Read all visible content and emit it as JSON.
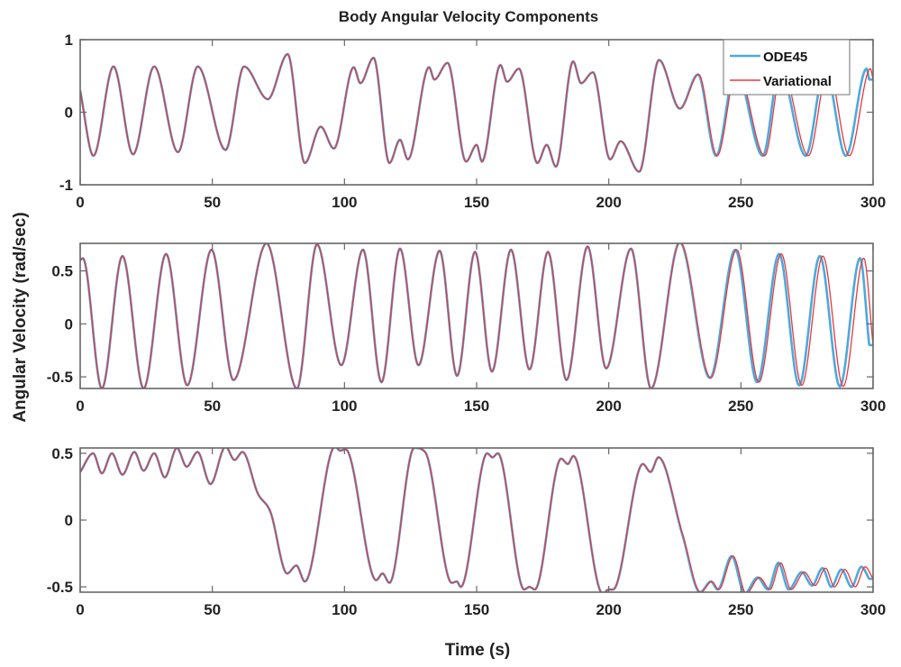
{
  "chart_data": {
    "type": "line",
    "title": "Body Angular Velocity Components",
    "xlabel": "Time (s)",
    "ylabel": "Angular Velocity (rad/sec)",
    "legend": {
      "placement": "top-right (top subplot)",
      "entries": [
        "ODE45",
        "Variational"
      ]
    },
    "colors": {
      "ODE45": "#4da9dc",
      "Variational": "#e8383d",
      "axis": "#666666"
    },
    "grid": false,
    "xlim": [
      0,
      300
    ],
    "xticks": [
      0,
      50,
      100,
      150,
      200,
      250,
      300
    ],
    "ode45_relation": {
      "description_note": "ODE45 matches Variational until ~220 s, then leads it slightly",
      "lead_start_s": 220,
      "lead_max_s": 1.5
    },
    "subplots": [
      {
        "name": "component-1",
        "ylim": [
          -1,
          1
        ],
        "yticks": [
          -1,
          0,
          1
        ],
        "variational": {
          "x": [
            0,
            5,
            12.6,
            20,
            28,
            37,
            44.5,
            55,
            62,
            71,
            78.5,
            85,
            91,
            96,
            103.5,
            106,
            111,
            117,
            121,
            124,
            132,
            134,
            139,
            146,
            150,
            152,
            159,
            161.5,
            166,
            173,
            176.5,
            180,
            186.5,
            189.5,
            194,
            200.5,
            204.5,
            211.5,
            219,
            227,
            234,
            241,
            248.5,
            259,
            265.5,
            275.5,
            283,
            291,
            299,
            300
          ],
          "y": [
            0.3,
            -0.6,
            0.63,
            -0.58,
            0.63,
            -0.55,
            0.63,
            -0.52,
            0.63,
            0.18,
            0.8,
            -0.7,
            -0.2,
            -0.5,
            0.62,
            0.4,
            0.75,
            -0.7,
            -0.38,
            -0.65,
            0.62,
            0.45,
            0.68,
            -0.68,
            -0.45,
            -0.68,
            0.65,
            0.42,
            0.6,
            -0.7,
            -0.45,
            -0.75,
            0.7,
            0.4,
            0.55,
            -0.65,
            -0.4,
            -0.82,
            0.72,
            0.05,
            0.52,
            -0.6,
            0.6,
            -0.6,
            0.6,
            -0.6,
            0.6,
            -0.6,
            0.6,
            0.45
          ]
        }
      },
      {
        "name": "component-2",
        "ylim": [
          -0.61,
          0.76
        ],
        "yticks": [
          -0.5,
          0,
          0.5
        ],
        "variational": {
          "x": [
            0,
            1,
            8.2,
            16,
            24,
            32.5,
            40.5,
            49.7,
            58,
            70.5,
            82,
            89.6,
            98.8,
            107,
            114,
            121,
            128,
            136,
            142.6,
            149.4,
            155.8,
            163,
            170,
            177,
            184,
            192,
            199,
            208.4,
            216,
            227,
            238.6,
            248.4,
            256.8,
            265.3,
            273,
            281,
            288.7,
            296.5,
            300
          ],
          "y": [
            0.6,
            0.62,
            -0.61,
            0.64,
            -0.61,
            0.66,
            -0.58,
            0.7,
            -0.53,
            0.76,
            -0.61,
            0.75,
            -0.39,
            0.7,
            -0.55,
            0.71,
            -0.39,
            0.69,
            -0.49,
            0.68,
            -0.45,
            0.7,
            -0.43,
            0.68,
            -0.53,
            0.73,
            -0.42,
            0.71,
            -0.61,
            0.77,
            -0.51,
            0.7,
            -0.55,
            0.66,
            -0.58,
            0.64,
            -0.59,
            0.62,
            -0.2
          ]
        }
      },
      {
        "name": "component-3",
        "ylim": [
          -0.54,
          0.54
        ],
        "yticks": [
          -0.5,
          0,
          0.5
        ],
        "variational": {
          "x": [
            0,
            4.9,
            8.2,
            12,
            16,
            20.5,
            24,
            28,
            32,
            36.6,
            40.3,
            44.4,
            49.3,
            55,
            58.4,
            61.4,
            67.2,
            72,
            78.3,
            81.8,
            85,
            96.4,
            98.4,
            100.4,
            112,
            114.4,
            117,
            126.4,
            130.5,
            140.6,
            142.5,
            144,
            154,
            156,
            158,
            168,
            170,
            172,
            182,
            184.5,
            186.6,
            197.7,
            200,
            201.6,
            212.9,
            215.8,
            218.8,
            228,
            234.8,
            239,
            241.6,
            247,
            252,
            257,
            261,
            265,
            269,
            274,
            278,
            282,
            285.4,
            289.3,
            293.2,
            297,
            300
          ],
          "y": [
            0.36,
            0.5,
            0.35,
            0.5,
            0.34,
            0.51,
            0.37,
            0.5,
            0.32,
            0.54,
            0.4,
            0.51,
            0.27,
            0.55,
            0.45,
            0.51,
            0.2,
            0.06,
            -0.4,
            -0.34,
            -0.46,
            0.55,
            0.52,
            0.53,
            -0.45,
            -0.4,
            -0.47,
            0.54,
            0.51,
            -0.47,
            -0.46,
            -0.5,
            0.5,
            0.47,
            0.5,
            -0.52,
            -0.5,
            -0.52,
            0.46,
            0.42,
            0.48,
            -0.55,
            -0.52,
            -0.52,
            0.42,
            0.36,
            0.47,
            -0.11,
            -0.54,
            -0.46,
            -0.52,
            -0.27,
            -0.55,
            -0.43,
            -0.52,
            -0.32,
            -0.52,
            -0.39,
            -0.49,
            -0.36,
            -0.5,
            -0.37,
            -0.5,
            -0.35,
            -0.44
          ]
        }
      }
    ]
  }
}
